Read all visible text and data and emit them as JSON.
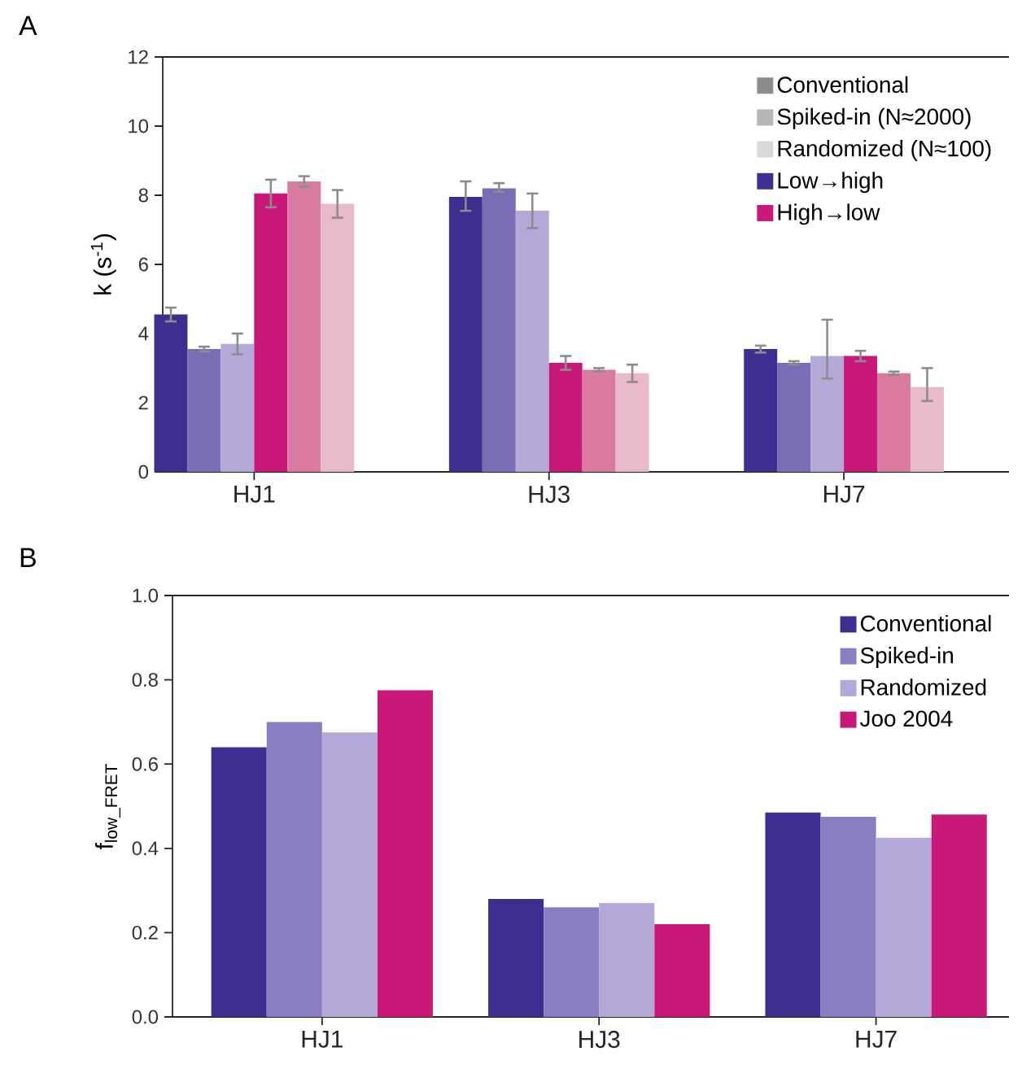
{
  "chart_data": [
    {
      "type": "bar",
      "title": "A",
      "ylabel": "k (s$^{-1}$)",
      "categories": [
        "HJ1",
        "HJ3",
        "HJ7"
      ],
      "ylim": [
        0,
        12
      ],
      "yticks": [
        0,
        2,
        4,
        6,
        8,
        10,
        12
      ],
      "legend": "top right",
      "series": [
        {
          "name": "Low→high",
          "color": "#3f2d8f",
          "values": [
            4.55,
            7.95,
            3.55
          ],
          "errors": [
            [
              4.35,
              4.75
            ],
            [
              7.55,
              8.4
            ],
            [
              3.45,
              3.65
            ]
          ]
        },
        {
          "color": "#7b6db5",
          "values": [
            3.55,
            8.2,
            3.15
          ],
          "errors": [
            [
              3.48,
              3.62
            ],
            [
              8.1,
              8.35
            ],
            [
              3.1,
              3.2
            ]
          ]
        },
        {
          "color": "#b3a8d8",
          "values": [
            3.7,
            7.55,
            3.35
          ],
          "errors": [
            [
              3.4,
              4.0
            ],
            [
              7.05,
              8.05
            ],
            [
              2.7,
              4.4
            ]
          ]
        },
        {
          "name": "High→low",
          "color": "#c8197a",
          "values": [
            8.05,
            3.15,
            3.35
          ],
          "errors": [
            [
              7.65,
              8.45
            ],
            [
              2.95,
              3.35
            ],
            [
              3.2,
              3.5
            ]
          ]
        },
        {
          "color": "#d97aa0",
          "values": [
            8.4,
            2.95,
            2.85
          ],
          "errors": [
            [
              8.25,
              8.55
            ],
            [
              2.9,
              3.0
            ],
            [
              2.8,
              2.9
            ]
          ]
        },
        {
          "color": "#e8b8cb",
          "values": [
            7.75,
            2.85,
            2.45
          ],
          "errors": [
            [
              7.35,
              8.15
            ],
            [
              2.6,
              3.1
            ],
            [
              2.05,
              3.0
            ]
          ]
        },
        {
          "name": "Conventional",
          "color": "#8c8c8c",
          "values": [
            null,
            null,
            null
          ]
        },
        {
          "name": "Spiked-in (N≈2000)",
          "color": "#b5b5b5",
          "values": [
            null,
            null,
            null
          ]
        },
        {
          "name": "Randomized (N≈100)",
          "color": "#d9d9d9",
          "values": [
            null,
            null,
            null
          ]
        }
      ]
    },
    {
      "type": "bar",
      "title": "B",
      "ylabel": "f$_{low_FRET}$",
      "categories": [
        "HJ1",
        "HJ3",
        "HJ7"
      ],
      "ylim": [
        0,
        1
      ],
      "yticks": [
        {
          "value": 0,
          "label": "0.0"
        },
        0.2,
        0.4,
        0.6,
        0.8,
        {
          "value": 1,
          "label": "1.0"
        }
      ],
      "legend": "top right",
      "series": [
        {
          "name": "Conventional",
          "color": "#3f2d8f",
          "values": [
            0.64,
            0.28,
            0.485
          ]
        },
        {
          "name": "Spiked-in",
          "color": "#8b7ec0",
          "values": [
            0.7,
            0.26,
            0.475
          ]
        },
        {
          "name": "Randomized",
          "color": "#b3a8d8",
          "values": [
            0.675,
            0.27,
            0.425
          ]
        },
        {
          "name": "Joo 2004",
          "color": "#c8197a",
          "values": [
            0.775,
            0.22,
            0.48
          ]
        }
      ]
    }
  ]
}
